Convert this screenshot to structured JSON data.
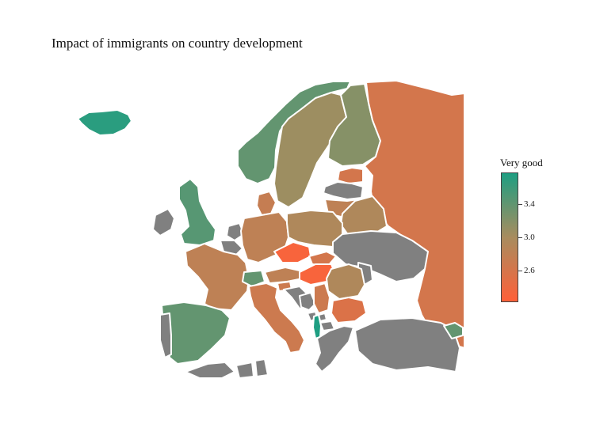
{
  "title": "Impact of immigrants on country development",
  "legend": {
    "title": "Very good",
    "ticks": [
      "3.4",
      "3.0",
      "2.6"
    ],
    "tick_values": [
      3.4,
      3.0,
      2.6
    ],
    "range": [
      2.4,
      3.6
    ],
    "colors": {
      "high": "#1e9e82",
      "mid": "#a88c5e",
      "low": "#ff6039",
      "no_data": "#808080"
    }
  },
  "map_data": {
    "regions": [
      {
        "name": "Iceland",
        "value": 3.55
      },
      {
        "name": "Norway",
        "value": 3.3
      },
      {
        "name": "Sweden",
        "value": 3.05
      },
      {
        "name": "Finland",
        "value": 3.15
      },
      {
        "name": "Russia",
        "value": 2.7
      },
      {
        "name": "Estonia",
        "value": 2.7
      },
      {
        "name": "Latvia",
        "value": null
      },
      {
        "name": "Lithuania",
        "value": 2.85
      },
      {
        "name": "Belarus",
        "value": 2.95
      },
      {
        "name": "Ireland",
        "value": null
      },
      {
        "name": "United Kingdom",
        "value": 3.35
      },
      {
        "name": "Denmark",
        "value": 2.8
      },
      {
        "name": "Netherlands",
        "value": null
      },
      {
        "name": "Belgium",
        "value": null
      },
      {
        "name": "Germany",
        "value": 2.85
      },
      {
        "name": "Poland",
        "value": 2.95
      },
      {
        "name": "Ukraine",
        "value": null
      },
      {
        "name": "Moldova",
        "value": null
      },
      {
        "name": "France",
        "value": 2.85
      },
      {
        "name": "Switzerland",
        "value": 3.3
      },
      {
        "name": "Austria",
        "value": 2.85
      },
      {
        "name": "Czechia",
        "value": 2.45
      },
      {
        "name": "Slovakia",
        "value": 2.7
      },
      {
        "name": "Hungary",
        "value": 2.45
      },
      {
        "name": "Slovenia",
        "value": 2.75
      },
      {
        "name": "Croatia",
        "value": null
      },
      {
        "name": "Romania",
        "value": 2.95
      },
      {
        "name": "Bosnia and Herzegovina",
        "value": null
      },
      {
        "name": "Serbia",
        "value": 2.75
      },
      {
        "name": "Montenegro",
        "value": null
      },
      {
        "name": "Kosovo",
        "value": null
      },
      {
        "name": "North Macedonia",
        "value": null
      },
      {
        "name": "Albania",
        "value": 3.6
      },
      {
        "name": "Bulgaria",
        "value": 2.65
      },
      {
        "name": "Greece",
        "value": null
      },
      {
        "name": "Turkey",
        "value": null
      },
      {
        "name": "Georgia",
        "value": 3.3
      },
      {
        "name": "Spain",
        "value": 3.3
      },
      {
        "name": "Portugal",
        "value": null
      },
      {
        "name": "Italy",
        "value": 2.75
      },
      {
        "name": "Morocco",
        "value": null
      },
      {
        "name": "Algeria",
        "value": null
      },
      {
        "name": "Tunisia",
        "value": null
      }
    ]
  }
}
